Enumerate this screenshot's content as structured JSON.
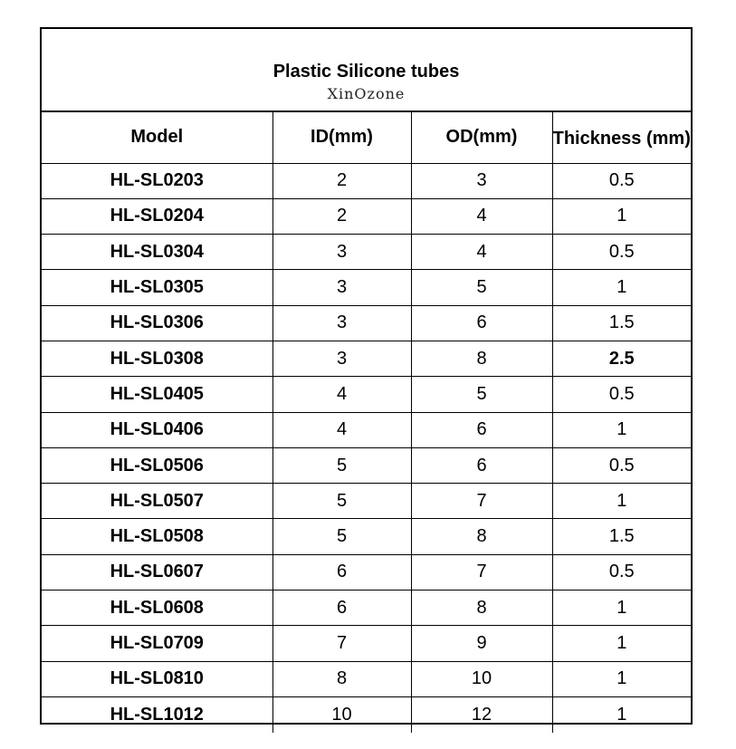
{
  "title": "Plastic Silicone tubes",
  "subtitle": "XinOzone",
  "columns": [
    "Model",
    "ID(mm)",
    "OD(mm)",
    "Thickness (mm)"
  ],
  "rows": [
    {
      "model": "HL-SL0203",
      "id": "2",
      "od": "3",
      "thickness": "0.5"
    },
    {
      "model": "HL-SL0204",
      "id": "2",
      "od": "4",
      "thickness": "1"
    },
    {
      "model": "HL-SL0304",
      "id": "3",
      "od": "4",
      "thickness": "0.5"
    },
    {
      "model": "HL-SL0305",
      "id": "3",
      "od": "5",
      "thickness": "1"
    },
    {
      "model": "HL-SL0306",
      "id": "3",
      "od": "6",
      "thickness": "1.5"
    },
    {
      "model": "HL-SL0308",
      "id": "3",
      "od": "8",
      "thickness": "2.5"
    },
    {
      "model": "HL-SL0405",
      "id": "4",
      "od": "5",
      "thickness": "0.5"
    },
    {
      "model": "HL-SL0406",
      "id": "4",
      "od": "6",
      "thickness": "1"
    },
    {
      "model": "HL-SL0506",
      "id": "5",
      "od": "6",
      "thickness": "0.5"
    },
    {
      "model": "HL-SL0507",
      "id": "5",
      "od": "7",
      "thickness": "1"
    },
    {
      "model": "HL-SL0508",
      "id": "5",
      "od": "8",
      "thickness": "1.5"
    },
    {
      "model": "HL-SL0607",
      "id": "6",
      "od": "7",
      "thickness": "0.5"
    },
    {
      "model": "HL-SL0608",
      "id": "6",
      "od": "8",
      "thickness": "1"
    },
    {
      "model": "HL-SL0709",
      "id": "7",
      "od": "9",
      "thickness": "1"
    },
    {
      "model": "HL-SL0810",
      "id": "8",
      "od": "10",
      "thickness": "1"
    },
    {
      "model": "HL-SL1012",
      "id": "10",
      "od": "12",
      "thickness": "1"
    }
  ]
}
